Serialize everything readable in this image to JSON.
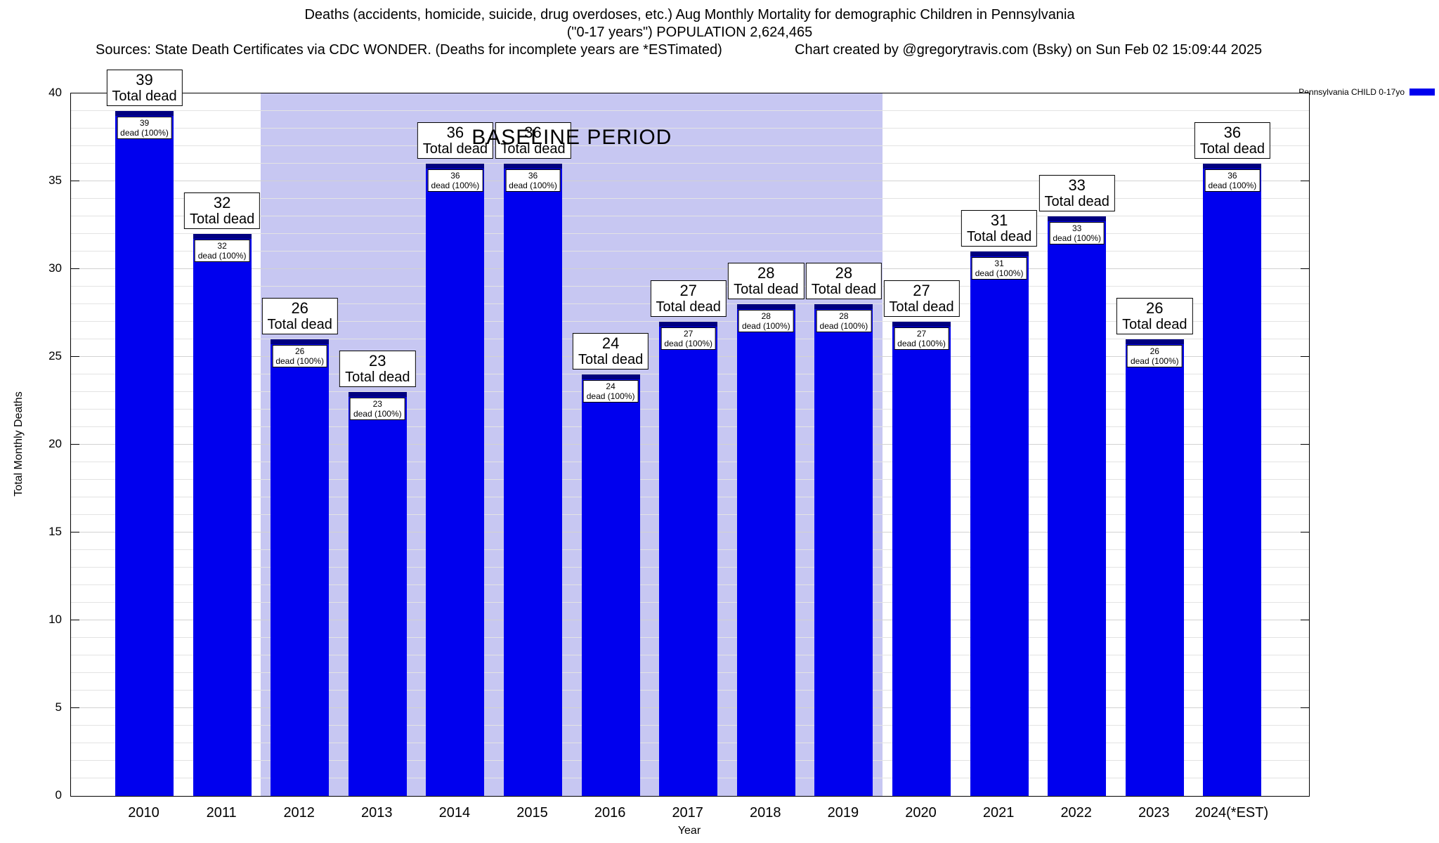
{
  "header": {
    "line1": "Deaths (accidents, homicide, suicide, drug overdoses, etc.) Aug Monthly Mortality for demographic Children in Pennsylvania",
    "line2": "(\"0-17 years\") POPULATION 2,624,465",
    "line3_left": "Sources: State Death Certificates via CDC WONDER. (Deaths for incomplete years are *ESTimated)",
    "line3_right": "Chart created by @gregorytravis.com (Bsky) on Sun Feb 02 15:09:44 2025"
  },
  "legend": {
    "label": "Pennsylvania CHILD 0-17yo",
    "color": "#0000ee"
  },
  "chart_data": {
    "type": "bar",
    "title": "Deaths (accidents, homicide, suicide, drug overdoses, etc.) Aug Monthly Mortality for demographic Children in Pennsylvania",
    "subtitle": "(\"0-17 years\") POPULATION 2,624,465",
    "series_label": "Pennsylvania CHILD 0-17yo",
    "categories": [
      "2010",
      "2011",
      "2012",
      "2013",
      "2014",
      "2015",
      "2016",
      "2017",
      "2018",
      "2019",
      "2020",
      "2021",
      "2022",
      "2023",
      "2024(*EST)"
    ],
    "values": [
      39,
      32,
      26,
      23,
      36,
      36,
      24,
      27,
      28,
      28,
      27,
      31,
      33,
      26,
      36
    ],
    "top_label_suffix": "Total dead",
    "inner_label_suffix": "dead (100%)",
    "xlabel": "Year",
    "ylabel": "Total Monthly Deaths",
    "ylim": [
      0,
      40
    ],
    "ytick_step": 5,
    "grid": true,
    "bar_color": "#0000ee",
    "bar_cap_color": "#000080",
    "band_color": "#c7c7f2",
    "baseline": {
      "label": "BASELINE PERIOD",
      "start_category": "2012",
      "end_category": "2019"
    }
  }
}
